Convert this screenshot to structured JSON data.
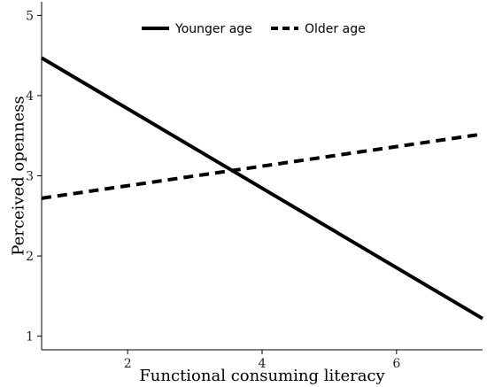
{
  "chart_data": {
    "type": "line",
    "xlabel": "Functional consuming literacy",
    "ylabel": "Perceived openness",
    "xlim": [
      0.72,
      7.28
    ],
    "ylim": [
      0.83,
      5.17
    ],
    "x_ticks": [
      2,
      4,
      6
    ],
    "y_ticks": [
      1,
      2,
      3,
      4,
      5
    ],
    "grid": false,
    "legend_position": "top-center",
    "series": [
      {
        "name": "Younger age",
        "style": "solid",
        "color": "#000000",
        "x": [
          0.72,
          7.28
        ],
        "y": [
          4.47,
          1.22
        ]
      },
      {
        "name": "Older age",
        "style": "dashed",
        "color": "#000000",
        "x": [
          0.72,
          7.28
        ],
        "y": [
          2.72,
          3.52
        ]
      }
    ]
  }
}
